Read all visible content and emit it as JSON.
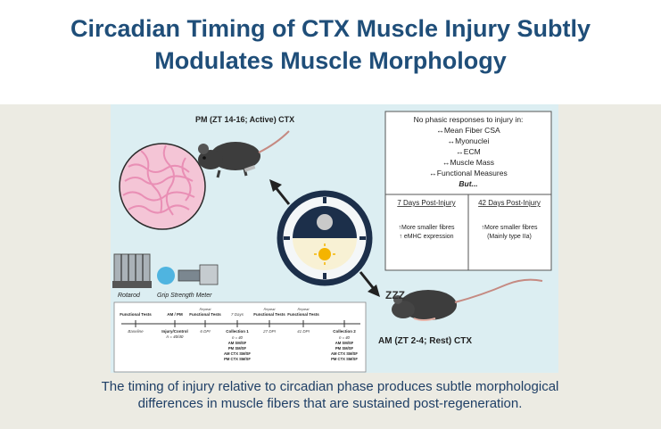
{
  "title_line1": "Circadian Timing of CTX Muscle Injury Subtly",
  "title_line2": "Modulates Muscle Morphology",
  "figure": {
    "pm_label": "PM (ZT 14-16; Active) CTX",
    "am_label": "AM (ZT 2-4; Rest) CTX",
    "zzz": "ZZZ",
    "box_heading": "No phasic responses to injury in:",
    "box_items": [
      "↔Mean Fiber CSA",
      "↔Myonuclei",
      "↔ECM",
      "↔Muscle Mass",
      "↔Functional Measures"
    ],
    "box_but": "But...",
    "day7_header": "7 Days Post-Injury",
    "day7_line1": "↑More smaller fibres",
    "day7_line2": "↑ eMHC expression",
    "day42_header": "42 Days Post-Injury",
    "day42_line1": "↑More smaller fibres",
    "day42_line2": "(Mainly type IIa)",
    "rotarod_label": "Rotarod",
    "grip_label": "Grip Strength Meter",
    "timeline": {
      "top_labels": [
        "Functional Tests",
        "AM / PM",
        "Functional Tests",
        "7 Days",
        "Functional Tests",
        "Functional Tests"
      ],
      "repeat": "Repeat",
      "stages": [
        "Baseline",
        "Injury/Control",
        "6 DPI",
        "Collection 1",
        "27 DPI",
        "41 DPI",
        "Collection 2"
      ],
      "n_inj": "n = 40/40",
      "col1": [
        "n = 40",
        "AM SM/SF",
        "PM SM/SF",
        "AM CTX SM/SF",
        "PM CTX SM/SF"
      ],
      "col2": [
        "n = 40",
        "AM SM/SF",
        "PM SM/SF",
        "AM CTX SM/SF",
        "PM CTX SM/SF"
      ]
    }
  },
  "caption": "The timing of injury relative to circadian phase produces subtle morphological differences in muscle fibers that are sustained post-regeneration."
}
